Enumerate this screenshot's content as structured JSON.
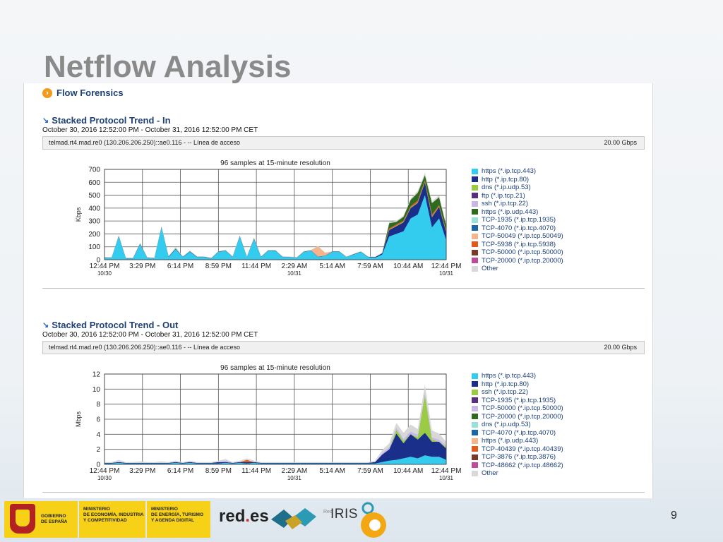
{
  "slide": {
    "title": "Netflow Analysis",
    "page_number": "9"
  },
  "app": {
    "header": "Flow Forensics"
  },
  "footer": {
    "gov1": "GOBIERNO\nDE ESPAÑA",
    "gov2": "MINISTERIO\nDE ECONOMÍA, INDUSTRIA\nY COMPETITIVIDAD",
    "gov3": "MINISTERIO\nDE ENERGÍA, TURISMO\nY AGENDA DIGITAL",
    "redes_a": "red",
    "redes_dot": ".",
    "redes_b": "es",
    "rediris": "IRIS",
    "rediris_prefix": "Red"
  },
  "chart_data": [
    {
      "type": "area",
      "section_title": "Stacked Protocol Trend - In",
      "date_range": "October 30, 2016 12:52:00 PM - October 31, 2016 12:52:00 PM CET",
      "interface": "telmad.rt4.mad.re0 (130.206.206.250)::ae0.116 - -- Línea de acceso",
      "speed": "20.00 Gbps",
      "title": "96 samples at 15-minute resolution",
      "ylabel": "Kbps",
      "ylim": [
        0,
        700
      ],
      "yticks": [
        "0",
        "100",
        "200",
        "300",
        "400",
        "500",
        "600",
        "700"
      ],
      "xticks": [
        "12:44 PM",
        "3:29 PM",
        "6:14 PM",
        "8:59 PM",
        "11:44 PM",
        "2:29 AM",
        "5:14 AM",
        "7:59 AM",
        "10:44 AM",
        "12:44 PM"
      ],
      "xdates": [
        "10/30",
        "10/31",
        "10/31"
      ],
      "grid": true,
      "legend_position": "right",
      "legend": [
        "https (*.ip.tcp.443)",
        "http (*.ip.tcp.80)",
        "dns (*.ip.udp.53)",
        "ftp (*.ip.tcp.21)",
        "ssh (*.ip.tcp.22)",
        "https (*.ip.udp.443)",
        "TCP-1935 (*.ip.tcp.1935)",
        "TCP-4070 (*.ip.tcp.4070)",
        "TCP-50049 (*.ip.tcp.50049)",
        "TCP-5938 (*.ip.tcp.5938)",
        "TCP-50000 (*.ip.tcp.50000)",
        "TCP-20000 (*.ip.tcp.20000)",
        "Other"
      ],
      "legend_colors": [
        "#33ccee",
        "#1a2f8a",
        "#99cc44",
        "#5a2d82",
        "#c8b8e8",
        "#2e6b1e",
        "#99e0d8",
        "#1a66aa",
        "#f6b48a",
        "#e05a1e",
        "#7a3a2a",
        "#c04a9a",
        "#d8d8d8"
      ],
      "x": [
        0,
        2,
        4,
        6,
        8,
        10,
        12,
        14,
        16,
        18,
        20,
        22,
        24,
        26,
        28,
        30,
        32,
        34,
        36,
        38,
        40,
        42,
        44,
        46,
        48,
        50,
        52,
        54,
        56,
        58,
        60,
        62,
        64,
        66,
        68,
        70,
        72,
        74,
        76,
        78,
        80,
        82,
        84,
        86,
        88,
        90,
        92,
        94,
        96
      ],
      "series": [
        {
          "name": "https (*.ip.tcp.443)",
          "values": [
            15,
            15,
            180,
            10,
            10,
            120,
            15,
            10,
            250,
            20,
            80,
            20,
            60,
            20,
            20,
            10,
            60,
            70,
            20,
            180,
            20,
            160,
            20,
            70,
            70,
            20,
            20,
            15,
            60,
            70,
            20,
            30,
            60,
            60,
            20,
            40,
            60,
            20,
            15,
            40,
            180,
            200,
            220,
            320,
            350,
            500,
            250,
            320,
            150
          ]
        },
        {
          "name": "http (*.ip.tcp.80)",
          "values": [
            3,
            2,
            5,
            2,
            2,
            5,
            2,
            2,
            5,
            5,
            5,
            3,
            4,
            3,
            3,
            2,
            3,
            3,
            3,
            5,
            3,
            5,
            3,
            3,
            3,
            3,
            2,
            2,
            3,
            3,
            3,
            2,
            3,
            3,
            2,
            3,
            3,
            3,
            5,
            10,
            50,
            60,
            70,
            80,
            90,
            100,
            80,
            90,
            60
          ]
        },
        {
          "name": "dns (*.ip.udp.53)",
          "values": [
            1,
            1,
            2,
            1,
            1,
            2,
            1,
            1,
            2,
            1,
            2,
            1,
            1,
            1,
            1,
            1,
            1,
            1,
            1,
            2,
            1,
            2,
            1,
            1,
            1,
            1,
            1,
            1,
            1,
            1,
            1,
            1,
            1,
            1,
            1,
            1,
            1,
            1,
            1,
            2,
            3,
            3,
            3,
            4,
            4,
            5,
            4,
            4,
            3
          ]
        },
        {
          "name": "TCP-1935 (*.ip.tcp.1935)",
          "values": [
            0,
            0,
            0,
            0,
            0,
            0,
            0,
            0,
            0,
            0,
            10,
            0,
            5,
            0,
            0,
            0,
            0,
            0,
            0,
            0,
            0,
            0,
            0,
            0,
            0,
            0,
            0,
            0,
            0,
            0,
            0,
            0,
            0,
            0,
            0,
            0,
            0,
            0,
            0,
            0,
            0,
            0,
            0,
            0,
            0,
            0,
            0,
            0,
            0
          ]
        },
        {
          "name": "TCP-50049 (*.ip.tcp.50049)",
          "values": [
            0,
            0,
            0,
            0,
            0,
            0,
            0,
            0,
            0,
            0,
            0,
            0,
            0,
            0,
            0,
            0,
            0,
            0,
            0,
            0,
            0,
            0,
            0,
            0,
            0,
            0,
            0,
            0,
            0,
            0,
            80,
            20,
            0,
            0,
            0,
            0,
            0,
            0,
            0,
            0,
            0,
            0,
            0,
            0,
            0,
            0,
            0,
            0,
            0
          ]
        },
        {
          "name": "TCP-5938 (*.ip.tcp.5938)",
          "values": [
            0,
            0,
            0,
            0,
            0,
            0,
            0,
            0,
            0,
            0,
            0,
            0,
            0,
            0,
            0,
            0,
            0,
            0,
            0,
            0,
            0,
            0,
            0,
            0,
            0,
            0,
            0,
            0,
            0,
            0,
            0,
            0,
            0,
            0,
            0,
            0,
            0,
            0,
            0,
            0,
            10,
            10,
            10,
            10,
            15,
            10,
            15,
            10,
            10
          ]
        },
        {
          "name": "https (*.ip.udp.443)",
          "values": [
            0,
            0,
            0,
            0,
            0,
            0,
            0,
            0,
            0,
            0,
            0,
            0,
            0,
            0,
            0,
            0,
            0,
            0,
            0,
            0,
            0,
            0,
            0,
            0,
            0,
            0,
            0,
            0,
            0,
            0,
            0,
            0,
            0,
            0,
            0,
            0,
            0,
            0,
            0,
            0,
            40,
            20,
            30,
            50,
            60,
            40,
            90,
            60,
            40
          ]
        },
        {
          "name": "Other",
          "values": [
            2,
            2,
            3,
            2,
            2,
            3,
            2,
            2,
            3,
            2,
            3,
            2,
            2,
            2,
            2,
            2,
            3,
            2,
            2,
            3,
            2,
            3,
            2,
            2,
            2,
            2,
            2,
            2,
            2,
            2,
            2,
            2,
            2,
            2,
            2,
            2,
            2,
            2,
            3,
            5,
            10,
            10,
            10,
            10,
            15,
            20,
            15,
            15,
            10
          ]
        }
      ]
    },
    {
      "type": "area",
      "section_title": "Stacked Protocol Trend - Out",
      "date_range": "October 30, 2016 12:52:00 PM - October 31, 2016 12:52:00 PM CET",
      "interface": "telmad.rt4.mad.re0 (130.206.206.250)::ae0.116 - -- Línea de acceso",
      "speed": "20.00 Gbps",
      "title": "96 samples at 15-minute resolution",
      "ylabel": "Mbps",
      "ylim": [
        0,
        12
      ],
      "yticks": [
        "0",
        "2",
        "4",
        "6",
        "8",
        "10",
        "12"
      ],
      "xticks": [
        "12:44 PM",
        "3:29 PM",
        "6:14 PM",
        "8:59 PM",
        "11:44 PM",
        "2:29 AM",
        "5:14 AM",
        "7:59 AM",
        "10:44 AM",
        "12:44 PM"
      ],
      "xdates": [
        "10/30",
        "10/31",
        "10/31"
      ],
      "grid": true,
      "legend_position": "right",
      "legend": [
        "https (*.ip.tcp.443)",
        "http (*.ip.tcp.80)",
        "ssh (*.ip.tcp.22)",
        "TCP-1935 (*.ip.tcp.1935)",
        "TCP-50000 (*.ip.tcp.50000)",
        "TCP-20000 (*.ip.tcp.20000)",
        "dns (*.ip.udp.53)",
        "TCP-4070 (*.ip.tcp.4070)",
        "https (*.ip.udp.443)",
        "TCP-40439 (*.ip.tcp.40439)",
        "TCP-3876 (*.ip.tcp.3876)",
        "TCP-48662 (*.ip.tcp.48662)",
        "Other"
      ],
      "legend_colors": [
        "#33ccee",
        "#1a2f8a",
        "#99cc44",
        "#5a2d82",
        "#c8b8e8",
        "#2e6b1e",
        "#99e0d8",
        "#1a66aa",
        "#f6b48a",
        "#e05a1e",
        "#7a3a2a",
        "#c04a9a",
        "#d8d8d8"
      ],
      "x": [
        0,
        2,
        4,
        6,
        8,
        10,
        12,
        14,
        16,
        18,
        20,
        22,
        24,
        26,
        28,
        30,
        32,
        34,
        36,
        38,
        40,
        42,
        44,
        46,
        48,
        50,
        52,
        54,
        56,
        58,
        60,
        62,
        64,
        66,
        68,
        70,
        72,
        74,
        76,
        78,
        80,
        82,
        84,
        86,
        88,
        90,
        92,
        94,
        96
      ],
      "series": [
        {
          "name": "https (*.ip.tcp.443)",
          "values": [
            0.1,
            0.1,
            0.2,
            0.1,
            0.1,
            0.1,
            0.1,
            0.1,
            0.1,
            0.1,
            0.2,
            0.1,
            0.2,
            0.1,
            0.1,
            0.1,
            0.1,
            0.2,
            0.1,
            0.2,
            0.1,
            0.2,
            0.1,
            0.1,
            0.1,
            0.1,
            0.1,
            0.1,
            0.1,
            0.1,
            0.1,
            0.1,
            0.1,
            0.1,
            0.1,
            0.1,
            0.1,
            0.1,
            0.1,
            0.3,
            0.5,
            0.6,
            0.8,
            1.0,
            0.8,
            1.2,
            1.0,
            1.0,
            0.6
          ]
        },
        {
          "name": "http (*.ip.tcp.80)",
          "values": [
            0.1,
            0.1,
            0.1,
            0.1,
            0.1,
            0.1,
            0.1,
            0.1,
            0.1,
            0.1,
            0.1,
            0.1,
            0.1,
            0.1,
            0.1,
            0.1,
            0.2,
            0.1,
            0.1,
            0.1,
            0.2,
            0.1,
            0.1,
            0.1,
            0.1,
            0.1,
            0.1,
            0.1,
            0.1,
            0.1,
            0.1,
            0.1,
            0.1,
            0.1,
            0.1,
            0.1,
            0.1,
            0.1,
            0.2,
            1.0,
            1.5,
            3.5,
            2.0,
            3.0,
            2.5,
            3.0,
            2.0,
            2.0,
            1.5
          ]
        },
        {
          "name": "ssh (*.ip.tcp.22)",
          "values": [
            0,
            0,
            0,
            0,
            0,
            0,
            0,
            0,
            0,
            0,
            0,
            0,
            0,
            0,
            0,
            0,
            0,
            0,
            0,
            0,
            0,
            0,
            0,
            0,
            0,
            0,
            0,
            0,
            0,
            0,
            0,
            0,
            0,
            0,
            0,
            0,
            0,
            0,
            0,
            0,
            0,
            0.5,
            0.3,
            0,
            0.3,
            5.0,
            0.3,
            0,
            0.2
          ]
        },
        {
          "name": "TCP-50000 (*.ip.tcp.50000)",
          "values": [
            0,
            0,
            0,
            0,
            0,
            0,
            0,
            0,
            0,
            0,
            0,
            0,
            0,
            0,
            0,
            0,
            0,
            0.2,
            0,
            0,
            0,
            0,
            0,
            0,
            0,
            0,
            0,
            0,
            0,
            0,
            0,
            0,
            0,
            0,
            0,
            0,
            0,
            0,
            0,
            0.2,
            0.3,
            0.3,
            0.3,
            0.4,
            0.3,
            0.4,
            0.3,
            0.3,
            0.2
          ]
        },
        {
          "name": "TCP-40439 (*.ip.tcp.40439)",
          "values": [
            0,
            0,
            0,
            0,
            0,
            0,
            0,
            0,
            0,
            0,
            0,
            0,
            0,
            0,
            0,
            0,
            0,
            0,
            0,
            0,
            0.3,
            0,
            0,
            0,
            0,
            0,
            0,
            0,
            0,
            0,
            0,
            0,
            0,
            0,
            0,
            0,
            0,
            0,
            0,
            0,
            0,
            0,
            0,
            0,
            0,
            0,
            0,
            0,
            0
          ]
        },
        {
          "name": "Other",
          "values": [
            0.1,
            0.1,
            0.3,
            0.1,
            0.1,
            0.2,
            0.1,
            0.1,
            0.2,
            0.1,
            0.2,
            0.1,
            0.2,
            0.1,
            0.1,
            0.1,
            0.2,
            0.2,
            0.1,
            0.2,
            0.2,
            0.2,
            0.1,
            0.1,
            0.1,
            0.1,
            0.1,
            0.1,
            0.1,
            0.1,
            0.1,
            0.1,
            0.1,
            0.1,
            0.1,
            0.1,
            0.1,
            0.1,
            0.2,
            0.4,
            0.5,
            0.6,
            0.8,
            0.9,
            0.8,
            1.0,
            0.9,
            0.8,
            0.5
          ]
        }
      ]
    }
  ]
}
